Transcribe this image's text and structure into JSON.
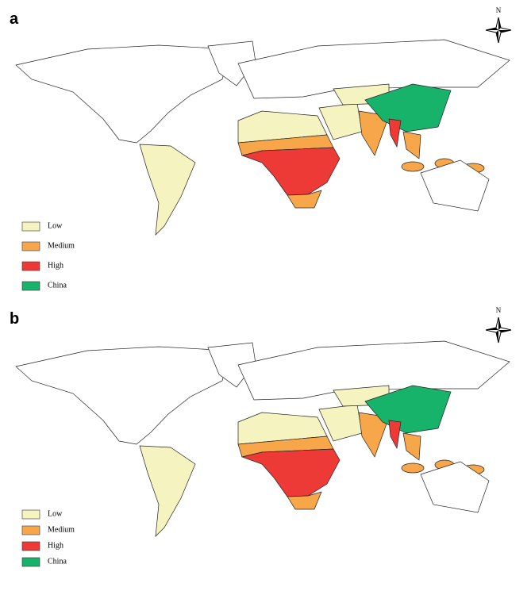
{
  "panels": [
    {
      "label": "a",
      "north": "N",
      "legend": [
        {
          "label": "Low",
          "color": "#f5f3c0"
        },
        {
          "label": "Medium",
          "color": "#f7a64a"
        },
        {
          "label": "High",
          "color": "#ee3a37"
        },
        {
          "label": "China",
          "color": "#17b36b"
        }
      ]
    },
    {
      "label": "b",
      "north": "N",
      "legend": [
        {
          "label": "Low",
          "color": "#f5f3c0"
        },
        {
          "label": "Medium",
          "color": "#f7a64a"
        },
        {
          "label": "High",
          "color": "#ee3a37"
        },
        {
          "label": "China",
          "color": "#17b36b"
        }
      ]
    }
  ]
}
